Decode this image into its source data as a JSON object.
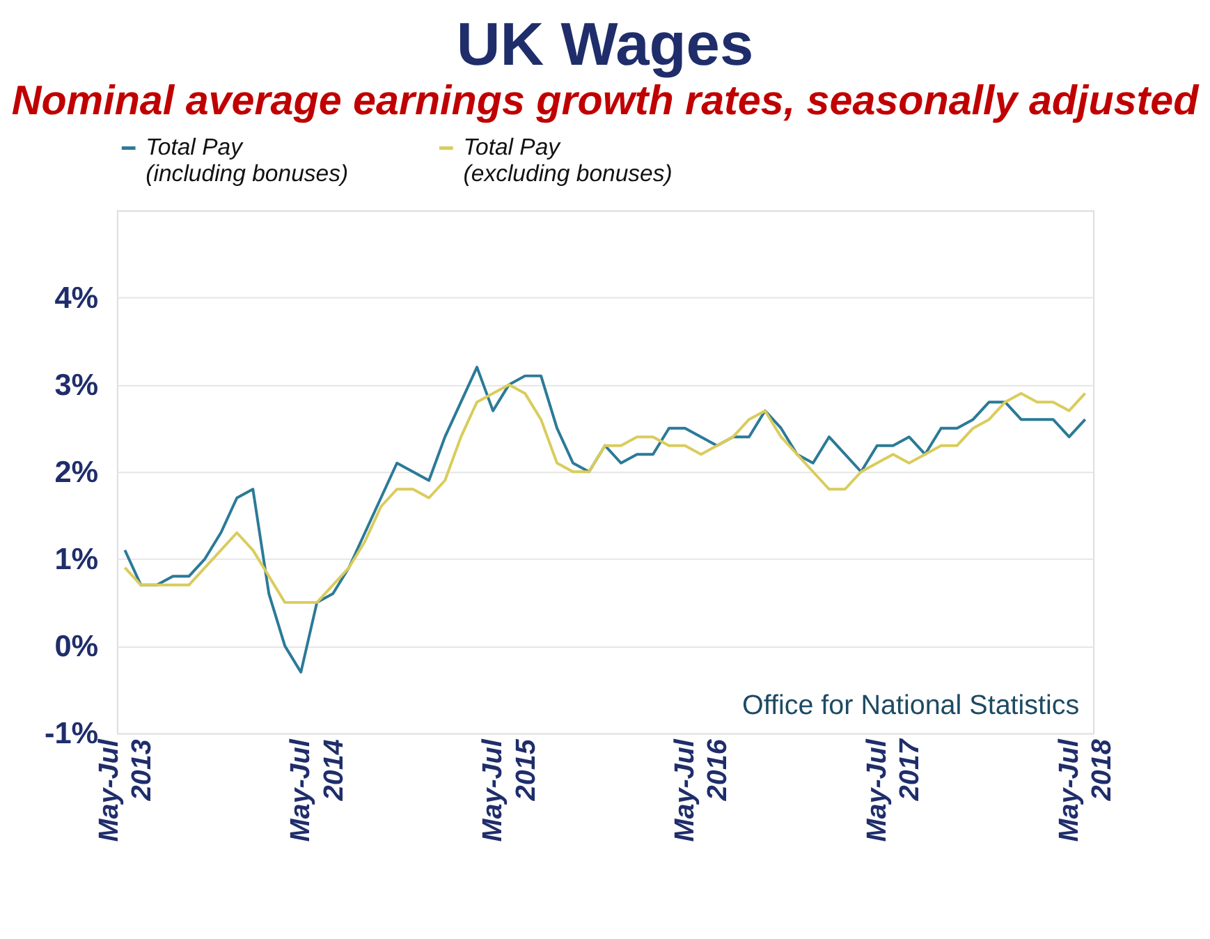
{
  "chart_data": {
    "type": "line",
    "title": "UK Wages",
    "subtitle": "Nominal average earnings growth rates, seasonally adjusted",
    "categories": [
      "May-Jul 2013",
      null,
      null,
      null,
      null,
      null,
      null,
      null,
      null,
      null,
      null,
      null,
      "May-Jul 2014",
      null,
      null,
      null,
      null,
      null,
      null,
      null,
      null,
      null,
      null,
      null,
      "May-Jul 2015",
      null,
      null,
      null,
      null,
      null,
      null,
      null,
      null,
      null,
      null,
      null,
      "May-Jul 2016",
      null,
      null,
      null,
      null,
      null,
      null,
      null,
      null,
      null,
      null,
      null,
      "May-Jul 2017",
      null,
      null,
      null,
      null,
      null,
      null,
      null,
      null,
      null,
      null,
      null,
      "May-Jul 2018"
    ],
    "series": [
      {
        "name": "Total Pay (including bonuses)",
        "color": "#2b7a97",
        "values": [
          1.1,
          0.7,
          0.7,
          0.8,
          0.8,
          1.0,
          1.3,
          1.7,
          1.8,
          0.6,
          0.0,
          -0.3,
          0.5,
          0.6,
          0.9,
          1.3,
          1.7,
          2.1,
          2.0,
          1.9,
          2.4,
          2.8,
          3.2,
          2.7,
          3.0,
          3.1,
          3.1,
          2.5,
          2.1,
          2.0,
          2.3,
          2.1,
          2.2,
          2.2,
          2.5,
          2.5,
          2.4,
          2.3,
          2.4,
          2.4,
          2.7,
          2.5,
          2.2,
          2.1,
          2.4,
          2.2,
          2.0,
          2.3,
          2.3,
          2.4,
          2.2,
          2.5,
          2.5,
          2.6,
          2.8,
          2.8,
          2.6,
          2.6,
          2.6,
          2.4,
          2.6
        ]
      },
      {
        "name": "Total Pay (excluding bonuses)",
        "color": "#d9cc5c",
        "values": [
          0.9,
          0.7,
          0.7,
          0.7,
          0.7,
          0.9,
          1.1,
          1.3,
          1.1,
          0.8,
          0.5,
          0.5,
          0.5,
          0.7,
          0.9,
          1.2,
          1.6,
          1.8,
          1.8,
          1.7,
          1.9,
          2.4,
          2.8,
          2.9,
          3.0,
          2.9,
          2.6,
          2.1,
          2.0,
          2.0,
          2.3,
          2.3,
          2.4,
          2.4,
          2.3,
          2.3,
          2.2,
          2.3,
          2.4,
          2.6,
          2.7,
          2.4,
          2.2,
          2.0,
          1.8,
          1.8,
          2.0,
          2.1,
          2.2,
          2.1,
          2.2,
          2.3,
          2.3,
          2.5,
          2.6,
          2.8,
          2.9,
          2.8,
          2.8,
          2.7,
          2.9
        ]
      }
    ],
    "ylim": [
      -1,
      5
    ],
    "yticks": [
      {
        "value": -1,
        "label": "-1%"
      },
      {
        "value": 0,
        "label": "0%"
      },
      {
        "value": 1,
        "label": "1%"
      },
      {
        "value": 2,
        "label": "2%"
      },
      {
        "value": 3,
        "label": "3%"
      },
      {
        "value": 4,
        "label": "4%"
      }
    ],
    "grid": "y",
    "legend": "top",
    "marker": "none",
    "line_style": "solid",
    "annotations": [
      "Office for National Statistics"
    ]
  }
}
